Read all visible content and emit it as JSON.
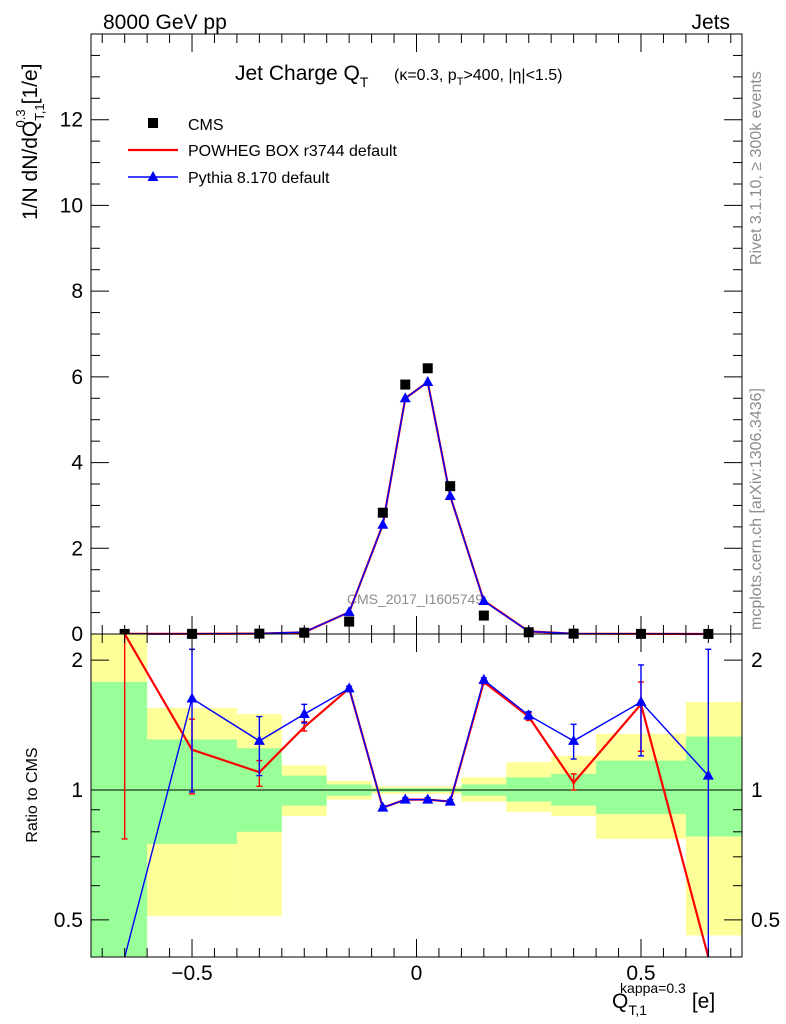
{
  "header": {
    "left": "8000 GeV pp",
    "right": "Jets"
  },
  "side_labels": {
    "rivet": "Rivet 3.1.10, ≥ 300k events",
    "mcplots": "mcplots.cern.ch [arXiv:1306.3436]"
  },
  "watermark": "CMS_2017_I1605749",
  "chart_data": [
    {
      "panel": "main",
      "type": "scatter",
      "title": "Jet Charge Q_T (κ=0.3, p_T>400, |η|<1.5)",
      "title_main": "Jet Charge Q",
      "title_main_sub": "T",
      "title_detail": "(κ=0.3, p",
      "title_detail_sub": "T",
      "title_detail_rest": ">400, |η|<1.5)",
      "ylabel": "1/N dN/dQ_T,1^0.3 [1/e]",
      "ylabel_main": "1/N dN/dQ",
      "ylabel_sub": "T,1",
      "ylabel_sup": "0.3",
      "ylabel_unit": "[1/e]",
      "xlim": [
        -0.725,
        0.725
      ],
      "ylim": [
        0,
        14
      ],
      "yticks": [
        0,
        2,
        4,
        6,
        8,
        10,
        12
      ],
      "ytick_labels": [
        "0",
        "2",
        "4",
        "6",
        "8",
        "10",
        "12"
      ],
      "legend_position": "top-left",
      "series": [
        {
          "name": "CMS",
          "marker": "square",
          "color": "#000000",
          "x": [
            -0.65,
            -0.5,
            -0.35,
            -0.25,
            -0.15,
            -0.075,
            -0.025,
            0.025,
            0.075,
            0.15,
            0.25,
            0.35,
            0.5,
            0.65
          ],
          "y": [
            0.002,
            0.003,
            0.008,
            0.03,
            0.29,
            2.83,
            5.82,
            6.2,
            3.45,
            0.43,
            0.04,
            0.008,
            0.003,
            0.002
          ]
        },
        {
          "name": "POWHEG BOX r3744 default",
          "marker": "line",
          "color": "#ff0000",
          "x": [
            -0.65,
            -0.5,
            -0.35,
            -0.25,
            -0.15,
            -0.075,
            -0.025,
            0.025,
            0.075,
            0.15,
            0.25,
            0.35,
            0.5,
            0.65
          ],
          "y": [
            0.004,
            0.004,
            0.009,
            0.04,
            0.51,
            2.55,
            5.5,
            5.88,
            3.22,
            0.78,
            0.06,
            0.008,
            0.005,
            0.0004
          ]
        },
        {
          "name": "Pythia 8.170 default",
          "marker": "triangle",
          "color": "#0000ff",
          "x": [
            -0.65,
            -0.5,
            -0.35,
            -0.25,
            -0.15,
            -0.075,
            -0.025,
            0.025,
            0.075,
            0.15,
            0.25,
            0.35,
            0.5,
            0.65
          ],
          "y": [
            0.001,
            0.005,
            0.01,
            0.044,
            0.51,
            2.55,
            5.5,
            5.88,
            3.22,
            0.77,
            0.06,
            0.01,
            0.005,
            0.002
          ]
        }
      ]
    },
    {
      "panel": "ratio",
      "type": "line",
      "ylabel": "Ratio to CMS",
      "xlabel": "Q_T,1^kappa=0.3 [e]",
      "xlabel_main": "Q",
      "xlabel_sub": "T,1",
      "xlabel_sup": "kappa=0.3",
      "xlabel_unit": "[e]",
      "xlim": [
        -0.725,
        0.725
      ],
      "ylim": [
        0.41,
        2.3
      ],
      "log_y": true,
      "yticks": [
        0.5,
        1,
        2
      ],
      "ytick_labels": [
        "0.5",
        "1",
        "2"
      ],
      "xticks": [
        -0.5,
        0,
        0.5
      ],
      "xtick_labels": [
        "−0.5",
        "0",
        "0.5"
      ],
      "bin_edges": [
        -0.725,
        -0.6,
        -0.4,
        -0.3,
        -0.2,
        -0.1,
        -0.05,
        0,
        0.05,
        0.1,
        0.2,
        0.3,
        0.4,
        0.6,
        0.725
      ],
      "band_inner": {
        "color": "#99ff99",
        "lo": [
          0.4,
          0.75,
          0.8,
          0.92,
          0.97,
          0.99,
          0.99,
          0.99,
          0.99,
          0.97,
          0.94,
          0.92,
          0.88,
          0.78
        ],
        "hi": [
          1.78,
          1.31,
          1.25,
          1.08,
          1.03,
          1.01,
          1.01,
          1.01,
          1.01,
          1.03,
          1.07,
          1.09,
          1.17,
          1.33
        ]
      },
      "band_outer": {
        "color": "#ffff99",
        "lo": [
          0.4,
          0.51,
          0.51,
          0.87,
          0.95,
          0.98,
          0.98,
          0.98,
          0.98,
          0.94,
          0.89,
          0.87,
          0.77,
          0.46
        ],
        "hi": [
          2.3,
          1.55,
          1.5,
          1.14,
          1.05,
          1.02,
          1.02,
          1.02,
          1.02,
          1.07,
          1.16,
          1.2,
          1.35,
          1.6
        ]
      },
      "series": [
        {
          "name": "POWHEG BOX r3744 default",
          "color": "#ff0000",
          "x": [
            -0.65,
            -0.5,
            -0.35,
            -0.25,
            -0.15,
            -0.075,
            -0.025,
            0.025,
            0.075,
            0.15,
            0.25,
            0.35,
            0.5,
            0.65
          ],
          "y": [
            2.3,
            1.24,
            1.1,
            1.4,
            1.72,
            0.91,
            0.95,
            0.95,
            0.94,
            1.78,
            1.48,
            1.04,
            1.58,
            0.2
          ],
          "err_lo": [
            0.77,
            0.98,
            1.02,
            1.37,
            1.7,
            0.9,
            0.94,
            0.94,
            0.93,
            1.76,
            1.45,
            1.0,
            1.23,
            0.2
          ],
          "err_hi": [
            2.3,
            1.46,
            1.17,
            1.44,
            1.74,
            0.92,
            0.96,
            0.96,
            0.95,
            1.8,
            1.51,
            1.09,
            1.78,
            0.2
          ]
        },
        {
          "name": "Pythia 8.170 default",
          "color": "#0000ff",
          "x": [
            -0.65,
            -0.5,
            -0.35,
            -0.25,
            -0.15,
            -0.075,
            -0.025,
            0.025,
            0.075,
            0.15,
            0.25,
            0.35,
            0.5,
            0.65
          ],
          "y": [
            0.3,
            1.63,
            1.3,
            1.5,
            1.72,
            0.91,
            0.95,
            0.95,
            0.94,
            1.8,
            1.49,
            1.3,
            1.6,
            1.08
          ],
          "err_lo": [
            0.3,
            0.99,
            1.08,
            1.43,
            1.7,
            0.9,
            0.94,
            0.94,
            0.93,
            1.78,
            1.46,
            1.18,
            1.2,
            0.3
          ],
          "err_hi": [
            0.3,
            2.12,
            1.48,
            1.58,
            1.74,
            0.92,
            0.96,
            0.96,
            0.95,
            1.82,
            1.52,
            1.42,
            1.95,
            2.12
          ]
        }
      ]
    }
  ]
}
